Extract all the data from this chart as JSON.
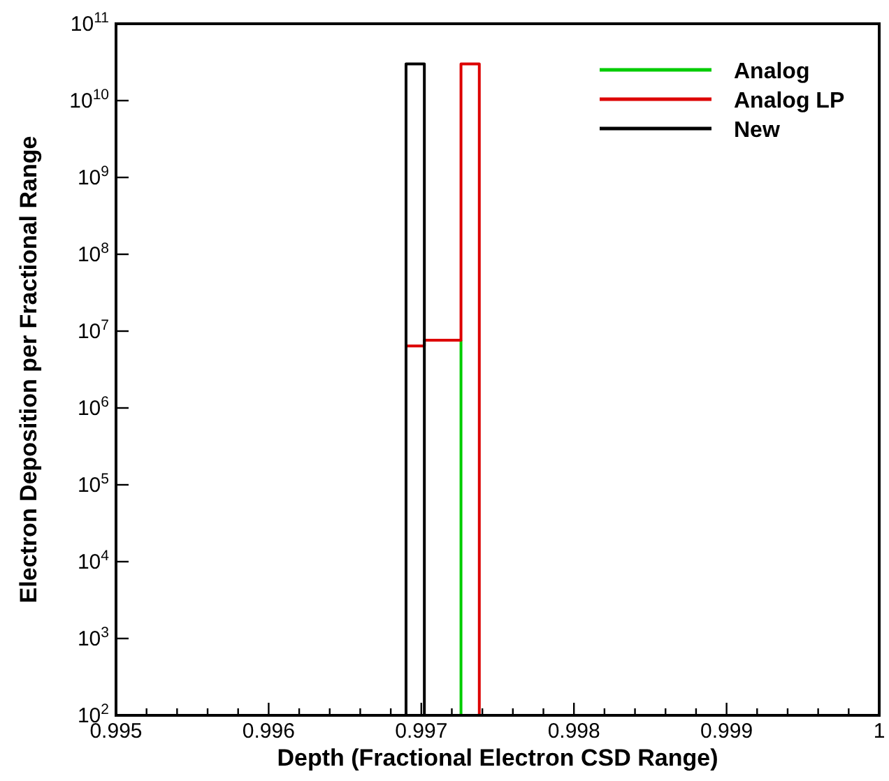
{
  "chart_data": {
    "type": "step",
    "xlabel": "Depth (Fractional Electron CSD Range)",
    "ylabel": "Electron Deposition per Fractional Range",
    "log": "y",
    "legend": "top right",
    "grid": false,
    "line_style": "solid",
    "xlim": [
      0.995,
      1
    ],
    "ylim": [
      100,
      100000000000
    ],
    "xticks": [
      0.995,
      {
        "value": 0.9952,
        "label": null
      },
      {
        "value": 0.9954,
        "label": null
      },
      {
        "value": 0.9956,
        "label": null
      },
      {
        "value": 0.9958,
        "label": null
      },
      0.996,
      {
        "value": 0.9962,
        "label": null
      },
      {
        "value": 0.9964,
        "label": null
      },
      {
        "value": 0.9966,
        "label": null
      },
      {
        "value": 0.9968,
        "label": null
      },
      0.997,
      {
        "value": 0.9972,
        "label": null
      },
      {
        "value": 0.9974,
        "label": null
      },
      {
        "value": 0.9976,
        "label": null
      },
      {
        "value": 0.9978,
        "label": null
      },
      0.998,
      {
        "value": 0.9982,
        "label": null
      },
      {
        "value": 0.9984,
        "label": null
      },
      {
        "value": 0.9986,
        "label": null
      },
      {
        "value": 0.9988,
        "label": null
      },
      0.999,
      {
        "value": 0.9992,
        "label": null
      },
      {
        "value": 0.9994,
        "label": null
      },
      {
        "value": 0.9996,
        "label": null
      },
      {
        "value": 0.9998,
        "label": null
      },
      1
    ],
    "yticks": [
      {
        "value": 100,
        "label": "10$^{2}$"
      },
      {
        "value": 1000,
        "label": "10$^{3}$"
      },
      {
        "value": 10000,
        "label": "10$^{4}$"
      },
      {
        "value": 100000,
        "label": "10$^{5}$"
      },
      {
        "value": 1000000,
        "label": "10$^{6}$"
      },
      {
        "value": 10000000,
        "label": "10$^{7}$"
      },
      {
        "value": 100000000,
        "label": "10$^{8}$"
      },
      {
        "value": 1000000000,
        "label": "10$^{9}$"
      },
      {
        "value": 10000000000,
        "label": "10$^{10}$"
      },
      {
        "value": 100000000000,
        "label": "10$^{11}$"
      }
    ],
    "series": [
      {
        "name": "Analog",
        "color": "#00cc00",
        "x": [
          0.99726,
          0.99726
        ],
        "values": [
          7600000,
          100
        ]
      },
      {
        "name": "Analog LP",
        "color": "#dd0000",
        "x": [
          0.9969,
          0.99702,
          0.99726,
          0.99738
        ],
        "values": [
          6400000,
          7600000,
          30000000000,
          100
        ]
      },
      {
        "name": "New",
        "color": "#000000",
        "x": [
          0.9969,
          0.9969,
          0.99702
        ],
        "values": [
          100,
          30000000000,
          100
        ]
      }
    ]
  }
}
